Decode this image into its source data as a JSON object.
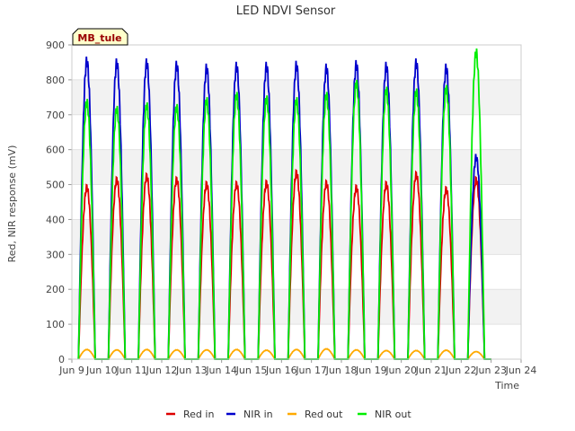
{
  "chart_data": {
    "type": "line",
    "title": "LED NDVI Sensor",
    "xlabel": "Time",
    "ylabel": "Red, NIR response (mV)",
    "ylim": [
      0,
      900
    ],
    "yticks": [
      0,
      100,
      200,
      300,
      400,
      500,
      600,
      700,
      800,
      900
    ],
    "xlim": [
      "2024-06-09",
      "2024-06-24"
    ],
    "xticks": [
      "Jun 9",
      "Jun 10",
      "Jun 11",
      "Jun 12",
      "Jun 13",
      "Jun 14",
      "Jun 15",
      "Jun 16",
      "Jun 17",
      "Jun 18",
      "Jun 19",
      "Jun 20",
      "Jun 21",
      "Jun 22",
      "Jun 23",
      "Jun 24"
    ],
    "grid": "horizontal bands",
    "legend_position": "bottom",
    "site_label": "MB_tule",
    "series": [
      {
        "name": "Red in",
        "color": "#dd0000",
        "daily_peak": [
          503,
          525,
          535,
          525,
          512,
          512,
          515,
          545,
          515,
          502,
          512,
          540,
          497,
          525
        ]
      },
      {
        "name": "NIR in",
        "color": "#0000cc",
        "daily_peak": [
          870,
          865,
          865,
          858,
          850,
          855,
          855,
          858,
          850,
          860,
          855,
          865,
          850,
          590
        ]
      },
      {
        "name": "Red out",
        "color": "#ffaa00",
        "daily_peak": [
          28,
          27,
          28,
          27,
          27,
          28,
          26,
          28,
          30,
          27,
          25,
          25,
          26,
          22
        ]
      },
      {
        "name": "NIR out",
        "color": "#00ee00",
        "daily_peak": [
          750,
          730,
          740,
          735,
          755,
          770,
          760,
          755,
          770,
          805,
          785,
          780,
          790,
          895
        ]
      }
    ]
  }
}
